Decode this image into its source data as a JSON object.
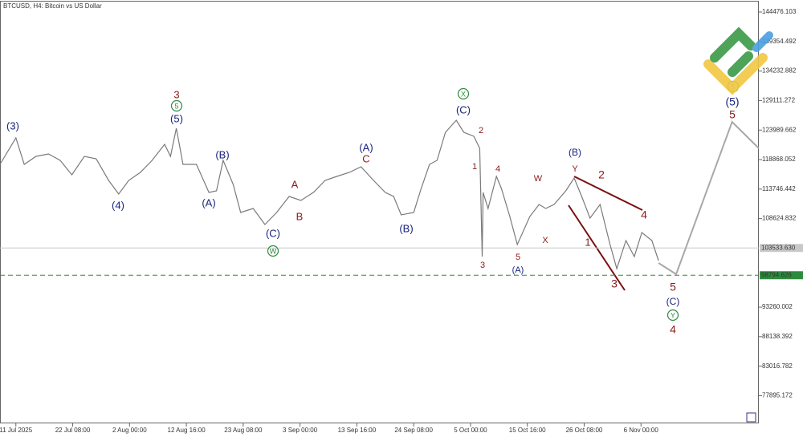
{
  "chart_data": {
    "type": "line",
    "title": "BTCUSD, H4:  Bitcoin vs US Dollar",
    "xlim": [
      0,
      908
    ],
    "xticks": [
      {
        "value": 19,
        "label": "11 Jul 2025"
      },
      {
        "value": 87,
        "label": "22 Jul 08:00"
      },
      {
        "value": 155,
        "label": "2 Aug 00:00"
      },
      {
        "value": 223,
        "label": "12 Aug 16:00"
      },
      {
        "value": 291,
        "label": "23 Aug 08:00"
      },
      {
        "value": 359,
        "label": "3 Sep 00:00"
      },
      {
        "value": 427,
        "label": "13 Sep 16:00"
      },
      {
        "value": 495,
        "label": "24 Sep 08:00"
      },
      {
        "value": 563,
        "label": "5 Oct 00:00"
      },
      {
        "value": 631,
        "label": "15 Oct 16:00"
      },
      {
        "value": 699,
        "label": "26 Oct 08:00"
      },
      {
        "value": 767,
        "label": "6 Nov 00:00"
      }
    ],
    "ylim": [
      73087,
      146285
    ],
    "yticks": [
      144476.103,
      139354.492,
      134232.882,
      129111.272,
      123989.662,
      118868.052,
      113746.442,
      108624.832,
      93260.002,
      88138.392,
      83016.782,
      77895.172
    ],
    "series": [
      {
        "color": "#7a7a7a",
        "x": [
          0,
          19,
          29,
          43,
          58,
          72,
          86,
          101,
          115,
          130,
          142,
          154,
          168,
          182,
          197,
          204,
          211,
          219,
          235,
          250,
          259,
          267,
          279,
          288,
          303,
          317,
          331,
          346,
          360,
          375,
          389,
          403,
          418,
          432,
          447,
          461,
          471,
          480,
          495,
          504,
          514,
          523,
          533,
          546,
          555,
          567,
          574,
          577,
          578,
          584,
          594,
          600,
          610,
          619,
          634,
          645,
          653,
          663,
          677,
          687,
          696,
          706,
          718,
          730,
          738,
          749,
          759,
          768,
          780,
          788
        ],
        "values": [
          118036,
          122628,
          118036,
          119427,
          119845,
          118731,
          116227,
          119427,
          119010,
          115252,
          112887,
          115252,
          116644,
          118731,
          121515,
          119427,
          124298,
          118036,
          118036,
          113165,
          113443,
          118731,
          114557,
          109686,
          110382,
          107599,
          109686,
          112469,
          111773,
          113165,
          115252,
          115948,
          116644,
          117618,
          115252,
          113165,
          112469,
          109269,
          109686,
          113861,
          118036,
          118731,
          123602,
          125689,
          123602,
          122906,
          120819,
          102032,
          113165,
          110382,
          115948,
          113861,
          108990,
          104120,
          108990,
          111078,
          110382,
          111078,
          113443,
          115670,
          112469,
          108712,
          111078,
          104120,
          99945,
          104815,
          102032,
          106207,
          104815,
          101336
        ]
      },
      {
        "color": "#a8a8a8",
        "x": [
          788,
          809,
          876,
          908
        ],
        "values": [
          100919,
          98971,
          125411,
          120819
        ]
      }
    ],
    "price_lines": [
      {
        "value": 103533.63,
        "label": "103533.630",
        "color": "#c8c8c8",
        "dashed": false
      },
      {
        "value": 98794.626,
        "color": "#2e8b3e",
        "dashed": true
      }
    ],
    "annotations": [
      {
        "text": "(3)",
        "color": "#1a237e"
      },
      {
        "text": "(4)",
        "color": "#1a237e"
      },
      {
        "text": "3",
        "color": "#8b1a1a"
      },
      {
        "text": "5",
        "color": "#2e8b3e",
        "circled": true
      },
      {
        "text": "(5)",
        "color": "#1a237e"
      },
      {
        "text": "(B)",
        "color": "#1a237e"
      },
      {
        "text": "(A)",
        "color": "#1a237e"
      },
      {
        "text": "(C)",
        "color": "#1a237e"
      },
      {
        "text": "W",
        "color": "#2e8b3e",
        "circled": true
      },
      {
        "text": "A",
        "color": "#8b1a1a"
      },
      {
        "text": "B",
        "color": "#8b1a1a"
      },
      {
        "text": "(A)",
        "color": "#1a237e"
      },
      {
        "text": "C",
        "color": "#8b1a1a"
      },
      {
        "text": "(B)",
        "color": "#1a237e"
      },
      {
        "text": "X",
        "color": "#2e8b3e",
        "circled": true
      },
      {
        "text": "(C)",
        "color": "#1a237e"
      },
      {
        "text": "2",
        "color": "#8b1a1a"
      },
      {
        "text": "1",
        "color": "#8b1a1a"
      },
      {
        "text": "4",
        "color": "#8b1a1a"
      },
      {
        "text": "3",
        "color": "#8b1a1a"
      },
      {
        "text": "5",
        "color": "#8b1a1a"
      },
      {
        "text": "(A)",
        "color": "#1a237e"
      },
      {
        "text": "W",
        "color": "#8b1a1a"
      },
      {
        "text": "X",
        "color": "#8b1a1a"
      },
      {
        "text": "Y",
        "color": "#8b1a1a"
      },
      {
        "text": "(B)",
        "color": "#1a237e"
      },
      {
        "text": "2",
        "color": "#8b1a1a"
      },
      {
        "text": "1",
        "color": "#8b1a1a"
      },
      {
        "text": "3",
        "color": "#8b1a1a"
      },
      {
        "text": "4",
        "color": "#8b1a1a"
      },
      {
        "text": "5",
        "color": "#8b1a1a"
      },
      {
        "text": "(C)",
        "color": "#1a237e"
      },
      {
        "text": "Y",
        "color": "#2e8b3e",
        "circled": true
      },
      {
        "text": "4",
        "color": "#8b1a1a"
      },
      {
        "text": "5",
        "color": "#2e8b3e",
        "circled": true
      },
      {
        "text": "(5)",
        "color": "#1a237e"
      },
      {
        "text": "5",
        "color": "#8b1a1a"
      }
    ]
  }
}
